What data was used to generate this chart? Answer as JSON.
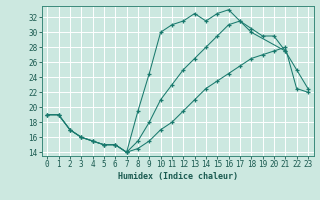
{
  "xlabel": "Humidex (Indice chaleur)",
  "background_color": "#cce8e0",
  "grid_color": "#ffffff",
  "line_color": "#1a7a6e",
  "xlim": [
    -0.5,
    23.5
  ],
  "ylim": [
    13.5,
    33.5
  ],
  "xticks": [
    0,
    1,
    2,
    3,
    4,
    5,
    6,
    7,
    8,
    9,
    10,
    11,
    12,
    13,
    14,
    15,
    16,
    17,
    18,
    19,
    20,
    21,
    22,
    23
  ],
  "yticks": [
    14,
    16,
    18,
    20,
    22,
    24,
    26,
    28,
    30,
    32
  ],
  "line1_x": [
    0,
    1,
    2,
    3,
    4,
    5,
    6,
    7,
    8,
    9,
    10,
    11,
    12,
    13,
    14,
    15,
    16,
    17,
    18,
    19,
    20,
    21
  ],
  "line1_y": [
    19.0,
    19.0,
    17.0,
    16.0,
    15.5,
    15.0,
    15.0,
    14.0,
    19.5,
    24.5,
    30.0,
    31.0,
    31.5,
    32.5,
    31.5,
    32.5,
    33.0,
    31.5,
    30.5,
    29.5,
    29.5,
    27.5
  ],
  "line2_x": [
    0,
    1,
    2,
    3,
    4,
    5,
    6,
    7,
    8,
    9,
    10,
    11,
    12,
    13,
    14,
    15,
    16,
    17,
    18,
    21,
    22,
    23
  ],
  "line2_y": [
    19.0,
    19.0,
    17.0,
    16.0,
    15.5,
    15.0,
    15.0,
    14.0,
    15.5,
    18.0,
    21.0,
    23.0,
    25.0,
    26.5,
    28.0,
    29.5,
    31.0,
    31.5,
    30.0,
    27.5,
    25.0,
    22.5
  ],
  "line3_x": [
    0,
    1,
    2,
    3,
    4,
    5,
    6,
    7,
    8,
    9,
    10,
    11,
    12,
    13,
    14,
    15,
    16,
    17,
    18,
    19,
    20,
    21,
    22,
    23
  ],
  "line3_y": [
    19.0,
    19.0,
    17.0,
    16.0,
    15.5,
    15.0,
    15.0,
    14.0,
    14.5,
    15.5,
    17.0,
    18.0,
    19.5,
    21.0,
    22.5,
    23.5,
    24.5,
    25.5,
    26.5,
    27.0,
    27.5,
    28.0,
    22.5,
    22.0
  ]
}
